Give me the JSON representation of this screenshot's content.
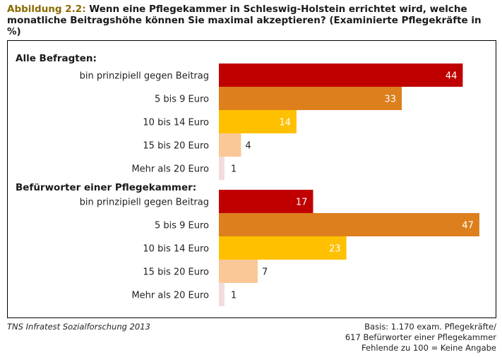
{
  "header": {
    "figure_label": "Abbildung 2.2:",
    "title_text": "Wenn eine Pflegekammer in Schleswig-Holstein errichtet wird, welche monatliche Beitragshöhe können Sie maximal akzeptieren? (Examinierte Pflegekräfte in %)"
  },
  "footer": {
    "source": "TNS Infratest Sozialforschung 2013",
    "note_lines": [
      "Basis: 1.170 exam. Pflegekräfte/",
      "617 Befürworter einer Pflegekammer",
      "Fehlende zu 100 = Keine Angabe"
    ]
  },
  "chart_data": {
    "type": "bar",
    "orientation": "horizontal",
    "categories": [
      "bin prinzipiell gegen Beitrag",
      "5 bis 9 Euro",
      "10  bis 14 Euro",
      "15 bis 20 Euro",
      "Mehr als 20 Euro"
    ],
    "colors": [
      "#c00000",
      "#dd7f1c",
      "#ffc000",
      "#fac896",
      "#f2dcdb"
    ],
    "groups": [
      {
        "name": "Alle Befragten:",
        "values": [
          44,
          33,
          14,
          4,
          1
        ]
      },
      {
        "name": "Befürworter einer Pflegekammer:",
        "values": [
          17,
          47,
          23,
          7,
          1
        ]
      }
    ],
    "xlim": [
      0,
      48
    ]
  }
}
